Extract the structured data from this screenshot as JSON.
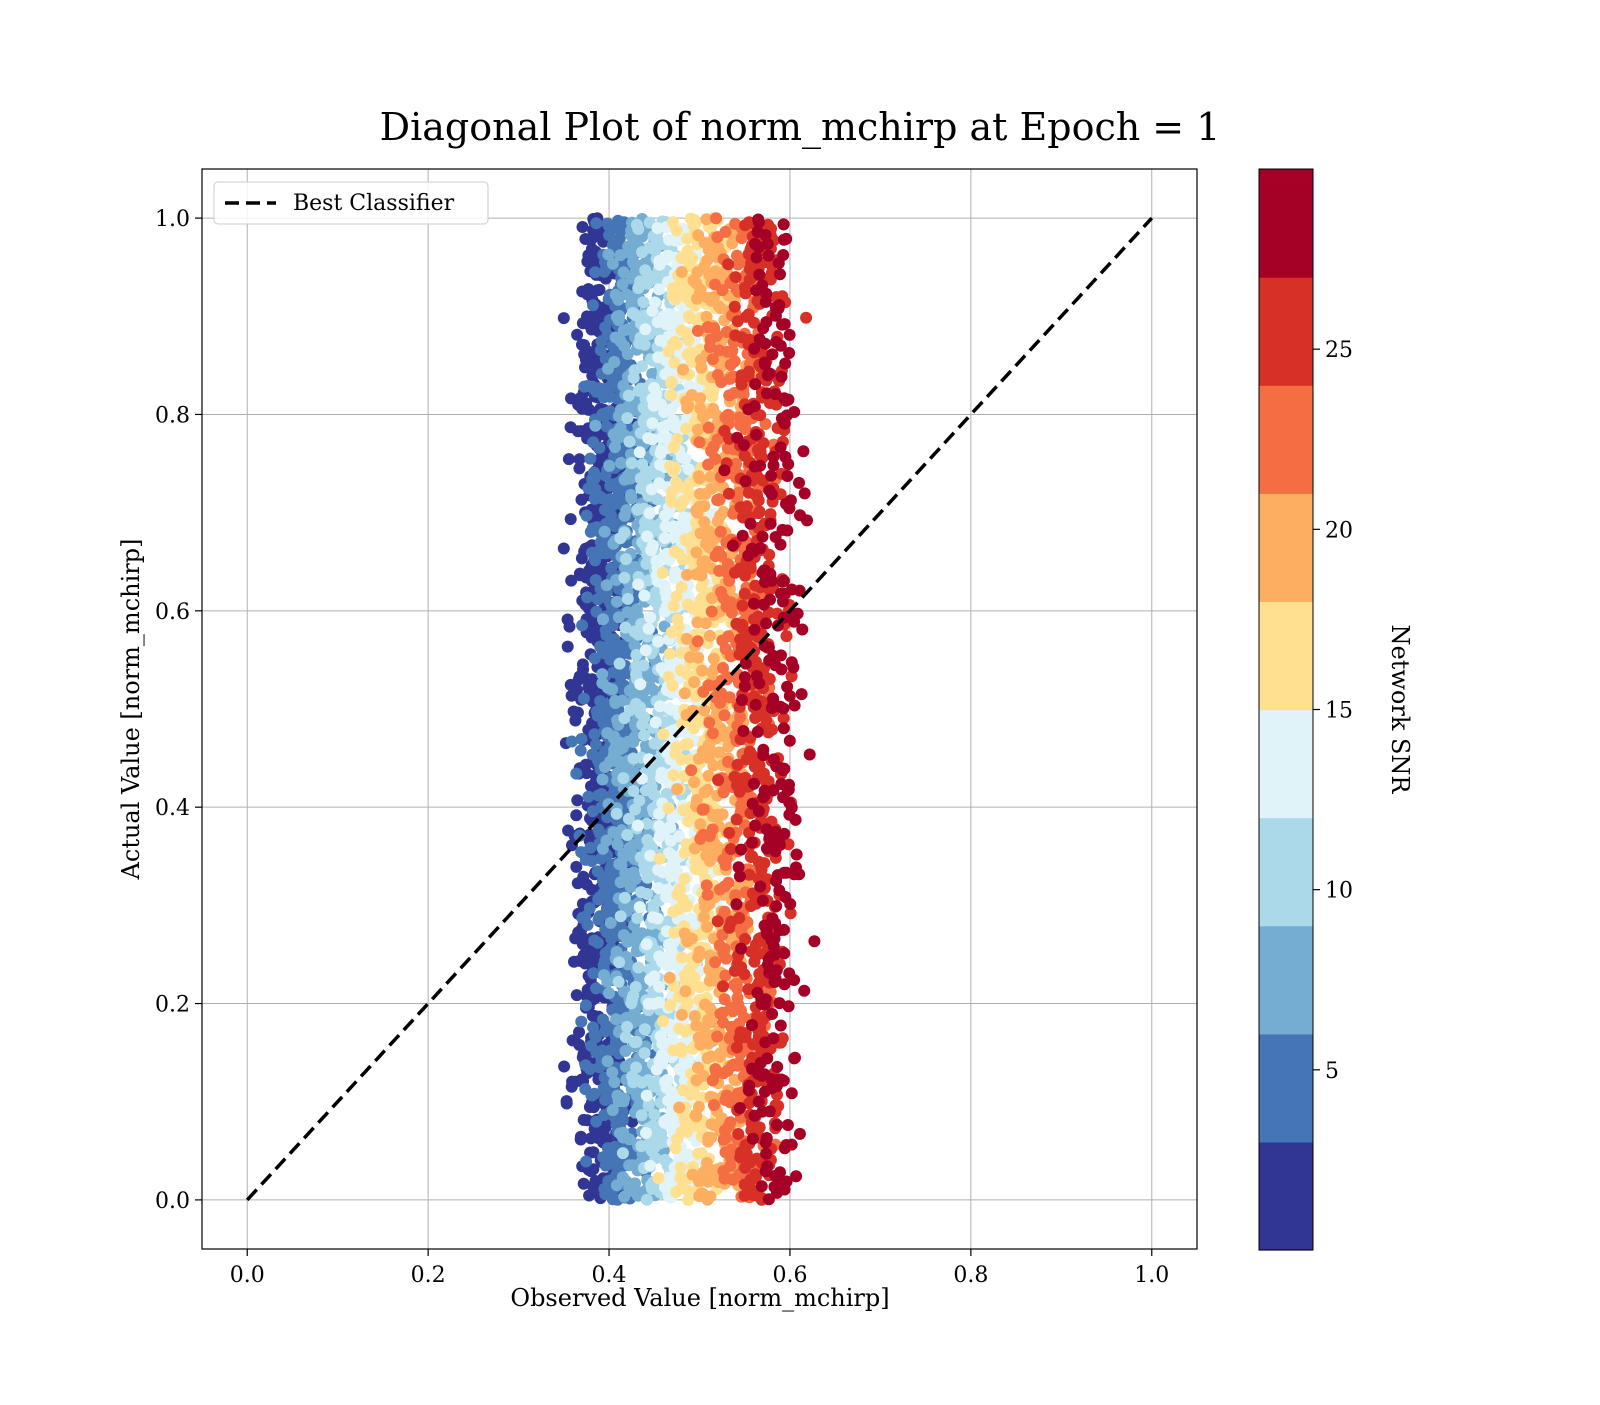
{
  "chart_data": {
    "type": "scatter",
    "title": "Diagonal Plot of norm_mchirp at Epoch = 1",
    "xlabel": "Observed Value [norm_mchirp]",
    "ylabel": "Actual Value [norm_mchirp]",
    "xlim": [
      -0.05,
      1.05
    ],
    "ylim": [
      -0.05,
      1.05
    ],
    "x_ticks": [
      "0.0",
      "0.2",
      "0.4",
      "0.6",
      "0.8",
      "1.0"
    ],
    "y_ticks": [
      "0.0",
      "0.2",
      "0.4",
      "0.6",
      "0.8",
      "1.0"
    ],
    "grid": true,
    "legend": {
      "placement": "top-left",
      "entries": [
        "Best Classifier"
      ]
    },
    "reference_line": {
      "name": "Best Classifier",
      "x": [
        0.0,
        1.0
      ],
      "y": [
        0.0,
        1.0
      ],
      "style": "dashed",
      "color": "#000000"
    },
    "colorbar": {
      "label": "Network SNR",
      "range": [
        0,
        30
      ],
      "ticks": [
        "5",
        "10",
        "15",
        "20",
        "25"
      ],
      "colormap": "RdYlBu_r",
      "colors": [
        "#313695",
        "#4575b4",
        "#74add1",
        "#abd9e9",
        "#e0f3f8",
        "#fee090",
        "#fdae61",
        "#f46d43",
        "#d73027",
        "#a50026"
      ]
    },
    "points_summary": {
      "x_range": [
        0.35,
        0.66
      ],
      "y_range": [
        0.0,
        1.0
      ],
      "trend": "low SNR points at x≈0.37–0.42, high SNR points at x≈0.5–0.62"
    }
  }
}
